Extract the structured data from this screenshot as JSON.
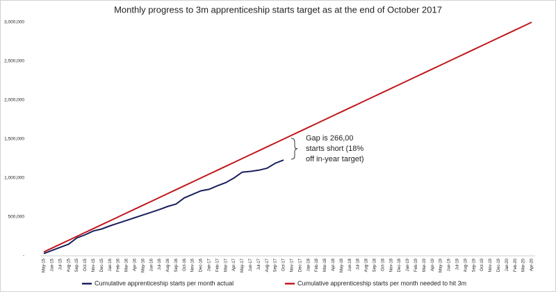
{
  "chart_data": {
    "type": "line",
    "title": "Monthly progress to 3m apprenticeship starts target as at the end of October 2017",
    "categories": [
      "May-15",
      "Jun-15",
      "Jul-15",
      "Aug-15",
      "Sep-15",
      "Oct-15",
      "Nov-15",
      "Dec-15",
      "Jan-16",
      "Feb-16",
      "Mar-16",
      "Apr-16",
      "May-16",
      "Jun-16",
      "Jul-16",
      "Aug-16",
      "Sep-16",
      "Oct-16",
      "Nov-16",
      "Dec-16",
      "Jan-17",
      "Feb-17",
      "Mar-17",
      "Apr-17",
      "May-17",
      "Jun-17",
      "Jul-17",
      "Aug-17",
      "Sep-17",
      "Oct-17",
      "Nov-17",
      "Dec-17",
      "Jan-18",
      "Feb-18",
      "Mar-18",
      "Apr-18",
      "May-18",
      "Jun-18",
      "Jul-18",
      "Aug-18",
      "Sep-18",
      "Oct-18",
      "Nov-18",
      "Dec-18",
      "Jan-19",
      "Feb-19",
      "Mar-19",
      "Apr-19",
      "May-19",
      "Jun-19",
      "Jul-19",
      "Aug-19",
      "Sep-19",
      "Oct-19",
      "Nov-19",
      "Dec-19",
      "Jan-20",
      "Feb-20",
      "Mar-20",
      "Apr-20"
    ],
    "series": [
      {
        "name": "Cumulative apprenticeship starts per month actual",
        "color": "#1a1f5c",
        "values": [
          30000,
          70000,
          110000,
          150000,
          230000,
          270000,
          320000,
          345000,
          385000,
          420000,
          455000,
          490000,
          525000,
          560000,
          595000,
          635000,
          665000,
          745000,
          790000,
          835000,
          855000,
          900000,
          940000,
          1000000,
          1075000,
          1085000,
          1100000,
          1125000,
          1190000,
          1230000,
          null,
          null,
          null,
          null,
          null,
          null,
          null,
          null,
          null,
          null,
          null,
          null,
          null,
          null,
          null,
          null,
          null,
          null,
          null,
          null,
          null,
          null,
          null,
          null,
          null,
          null,
          null,
          null,
          null,
          null
        ]
      },
      {
        "name": "Cumulative apprenticeship starts per month needed to hit 3m",
        "color": "#c0171c",
        "values": [
          50000,
          100000,
          150000,
          200000,
          250000,
          300000,
          350000,
          400000,
          450000,
          500000,
          550000,
          600000,
          650000,
          700000,
          750000,
          800000,
          850000,
          900000,
          950000,
          1000000,
          1050000,
          1100000,
          1150000,
          1200000,
          1250000,
          1300000,
          1350000,
          1400000,
          1450000,
          1500000,
          1550000,
          1600000,
          1650000,
          1700000,
          1750000,
          1800000,
          1850000,
          1900000,
          1950000,
          2000000,
          2050000,
          2100000,
          2150000,
          2200000,
          2250000,
          2300000,
          2350000,
          2400000,
          2450000,
          2500000,
          2550000,
          2600000,
          2650000,
          2700000,
          2750000,
          2800000,
          2850000,
          2900000,
          2950000,
          3000000
        ]
      }
    ],
    "ylim": [
      0,
      3000000
    ],
    "yticks": [
      {
        "value": 0,
        "label": "-"
      },
      {
        "value": 500000,
        "label": "500,000"
      },
      {
        "value": 1000000,
        "label": "1,000,000"
      },
      {
        "value": 1500000,
        "label": "1,500,000"
      },
      {
        "value": 2000000,
        "label": "2,000,000"
      },
      {
        "value": 2500000,
        "label": "2,500,000"
      },
      {
        "value": 3000000,
        "label": "3,000,000"
      }
    ],
    "annotation": [
      "Gap is 266,00",
      "starts short (18%",
      "off in-year target)"
    ],
    "legend": "bottom"
  }
}
